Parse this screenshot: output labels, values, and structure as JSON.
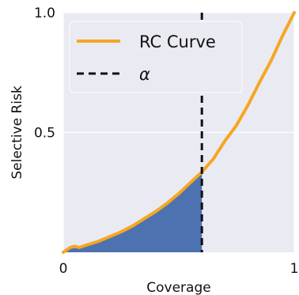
{
  "chart_data": {
    "type": "line",
    "title": "",
    "xlabel": "Coverage",
    "ylabel": "Selective Risk",
    "xlim": [
      0,
      1
    ],
    "ylim": [
      0,
      1
    ],
    "xticks": [
      0,
      1
    ],
    "xtick_labels": [
      "0",
      "1"
    ],
    "yticks": [
      0.5,
      1.0
    ],
    "ytick_labels": [
      "0.5",
      "1.0"
    ],
    "grid": true,
    "legend_position": "top-left",
    "series": [
      {
        "name": "RC Curve",
        "color": "#f5a623",
        "x": [
          0.0,
          0.03,
          0.05,
          0.07,
          0.1,
          0.15,
          0.2,
          0.25,
          0.3,
          0.35,
          0.4,
          0.45,
          0.5,
          0.55,
          0.6,
          0.65,
          0.7,
          0.75,
          0.8,
          0.85,
          0.9,
          0.95,
          1.0
        ],
        "y": [
          0.0,
          0.02,
          0.025,
          0.02,
          0.03,
          0.045,
          0.065,
          0.085,
          0.11,
          0.14,
          0.17,
          0.205,
          0.245,
          0.29,
          0.335,
          0.39,
          0.465,
          0.53,
          0.615,
          0.71,
          0.8,
          0.905,
          1.0
        ]
      }
    ],
    "threshold": {
      "name": "α",
      "x": 0.6,
      "color": "#111111",
      "style": "dashed"
    },
    "shaded_area": {
      "from_x": 0.0,
      "to_x": 0.6,
      "color": "#4c72b0"
    },
    "colors": {
      "background": "#eaeaf2",
      "grid": "#ffffff"
    }
  }
}
